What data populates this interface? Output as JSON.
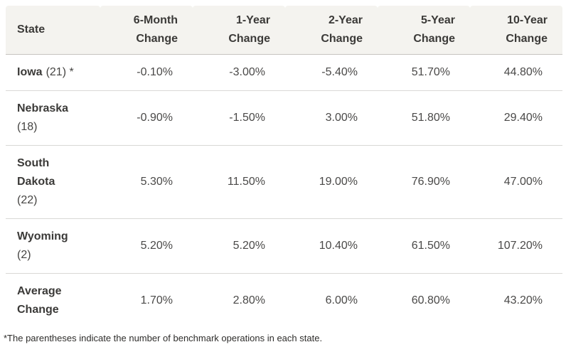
{
  "table": {
    "columns": [
      "State",
      "6-Month Change",
      "1-Year Change",
      "2-Year Change",
      "5-Year Change",
      "10-Year Change"
    ],
    "rows": [
      {
        "state": "Iowa",
        "note": "(21) *",
        "note_inline": true,
        "values": [
          "-0.10%",
          "-3.00%",
          "-5.40%",
          "51.70%",
          "44.80%"
        ]
      },
      {
        "state": "Nebraska",
        "note": "(18)",
        "note_inline": false,
        "values": [
          "-0.90%",
          "-1.50%",
          "3.00%",
          "51.80%",
          "29.40%"
        ]
      },
      {
        "state": "South Dakota",
        "note": "(22)",
        "note_inline": false,
        "values": [
          "5.30%",
          "11.50%",
          "19.00%",
          "76.90%",
          "47.00%"
        ]
      },
      {
        "state": "Wyoming",
        "note": "(2)",
        "note_inline": false,
        "values": [
          "5.20%",
          "5.20%",
          "10.40%",
          "61.50%",
          "107.20%"
        ]
      },
      {
        "state": "Average Change",
        "note": "",
        "note_inline": true,
        "values": [
          "1.70%",
          "2.80%",
          "6.00%",
          "60.80%",
          "43.20%"
        ]
      }
    ],
    "footnote": "*The parentheses indicate the number of benchmark operations in each state."
  },
  "chart_data": {
    "type": "table",
    "columns": [
      "State",
      "6-Month Change",
      "1-Year Change",
      "2-Year Change",
      "5-Year Change",
      "10-Year Change"
    ],
    "rows": [
      {
        "state": "Iowa",
        "benchmark_operations": 21,
        "values_pct": [
          -0.1,
          -3.0,
          -5.4,
          51.7,
          44.8
        ]
      },
      {
        "state": "Nebraska",
        "benchmark_operations": 18,
        "values_pct": [
          -0.9,
          -1.5,
          3.0,
          51.8,
          29.4
        ]
      },
      {
        "state": "South Dakota",
        "benchmark_operations": 22,
        "values_pct": [
          5.3,
          11.5,
          19.0,
          76.9,
          47.0
        ]
      },
      {
        "state": "Wyoming",
        "benchmark_operations": 2,
        "values_pct": [
          5.2,
          5.2,
          10.4,
          61.5,
          107.2
        ]
      },
      {
        "state": "Average Change",
        "values_pct": [
          1.7,
          2.8,
          6.0,
          60.8,
          43.2
        ]
      }
    ],
    "footnote": "*The parentheses indicate the number of benchmark operations in each state."
  },
  "colors": {
    "header_bg": "#f4f3ef",
    "header_border": "#c6c4c0",
    "row_border": "#d9d8d6",
    "text_dark": "#3b3a38",
    "text_value": "#4a4948",
    "page_bg": "#ffffff"
  }
}
